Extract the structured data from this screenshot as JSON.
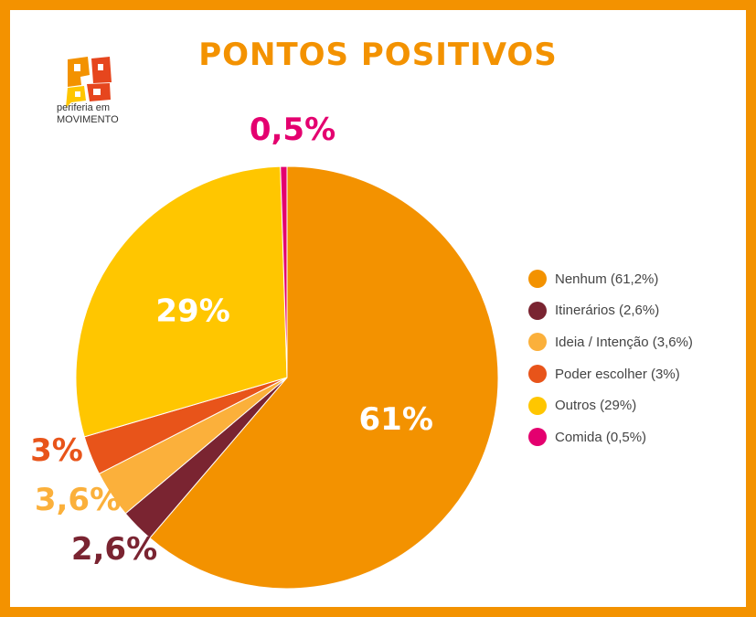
{
  "page": {
    "title": "PONTOS POSITIVOS",
    "brand_line1": "periferia em",
    "brand_line2": "MOVIMENTO"
  },
  "colors": {
    "border": "#f39200",
    "title": "#f39200",
    "logo_orange": "#f39200",
    "logo_red": "#e6461e",
    "logo_yellow": "#ffc600"
  },
  "chart_data": {
    "type": "pie",
    "title": "PONTOS POSITIVOS",
    "start_angle_deg": 0,
    "direction": "clockwise",
    "slices": [
      {
        "name": "Nenhum (61,2%)",
        "value": 61.2,
        "label": "61%",
        "color": "#f39200",
        "label_color": "#ffffff",
        "label_placement": "inside"
      },
      {
        "name": "Itinerários (2,6%)",
        "value": 2.6,
        "label": "2,6%",
        "color": "#7a2431",
        "label_color": "#7a2431",
        "label_placement": "outside"
      },
      {
        "name": "Ideia / Intenção (3,6%)",
        "value": 3.6,
        "label": "3,6%",
        "color": "#fbb03b",
        "label_color": "#fbb03b",
        "label_placement": "outside"
      },
      {
        "name": "Poder escolher (3%)",
        "value": 3.0,
        "label": "3%",
        "color": "#e8541a",
        "label_color": "#e8541a",
        "label_placement": "outside"
      },
      {
        "name": "Outros (29%)",
        "value": 29.0,
        "label": "29%",
        "color": "#ffc600",
        "label_color": "#ffffff",
        "label_placement": "inside"
      },
      {
        "name": "Comida (0,5%)",
        "value": 0.5,
        "label": "0,5%",
        "color": "#e4006f",
        "label_color": "#e4006f",
        "label_placement": "outside"
      }
    ],
    "legend": {
      "placement": "right",
      "items": [
        {
          "label": "Nenhum (61,2%)",
          "color": "#f39200"
        },
        {
          "label": "Itinerários (2,6%)",
          "color": "#7a2431"
        },
        {
          "label": "Ideia / Intenção (3,6%)",
          "color": "#fbb03b"
        },
        {
          "label": "Poder escolher (3%)",
          "color": "#e8541a"
        },
        {
          "label": "Outros (29%)",
          "color": "#ffc600"
        },
        {
          "label": "Comida (0,5%)",
          "color": "#e4006f"
        }
      ]
    }
  }
}
